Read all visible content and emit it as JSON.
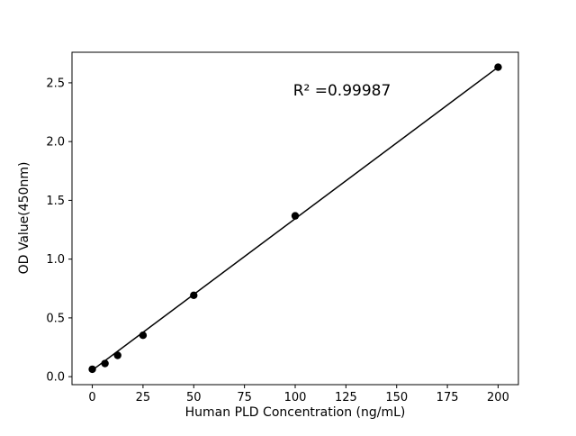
{
  "chart_data": {
    "type": "scatter",
    "title": "",
    "xlabel": "Human PLD Concentration (ng/mL)",
    "ylabel": "OD Value(450nm)",
    "annotation": "R² =0.99987",
    "x": [
      0,
      6.25,
      12.5,
      25,
      50,
      100,
      200
    ],
    "y": [
      0.063,
      0.112,
      0.181,
      0.352,
      0.692,
      1.368,
      2.633
    ],
    "fit_line": {
      "x": [
        0,
        200
      ],
      "y": [
        0.055,
        2.633
      ]
    },
    "xlim": [
      -10,
      210
    ],
    "ylim": [
      -0.068,
      2.76
    ],
    "xticks": [
      0,
      25,
      50,
      75,
      100,
      125,
      150,
      175,
      200
    ],
    "xticklabels": [
      "0",
      "25",
      "50",
      "75",
      "100",
      "125",
      "150",
      "175",
      "200"
    ],
    "yticks": [
      0.0,
      0.5,
      1.0,
      1.5,
      2.0,
      2.5
    ],
    "yticklabels": [
      "0.0",
      "0.5",
      "1.0",
      "1.5",
      "2.0",
      "2.5"
    ],
    "marker_color": "#000000",
    "line_color": "#000000",
    "axis_color": "#000000",
    "background_color": "#ffffff",
    "legend": "none",
    "grid": false
  }
}
